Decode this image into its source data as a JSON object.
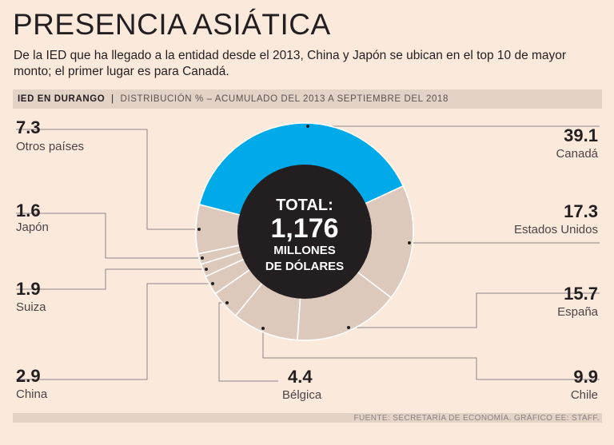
{
  "title": "PRESENCIA ASIÁTICA",
  "subtitle": "De la IED que ha llegado a la entidad desde el 2013, China y Japón se ubican en el top 10 de mayor monto; el primer lugar es para Canadá.",
  "header": {
    "bold": "IED EN DURANGO",
    "sep": "|",
    "rest": "DISTRIBUCIÓN % – ACUMULADO DEL 2013 A SEPTIEMBRE DEL 2018"
  },
  "center": {
    "line1": "TOTAL:",
    "line2": "1,176",
    "line3": "MILLONES",
    "line4": "DE DÓLARES"
  },
  "footer": "FUENTE: SECRETARÍA DE ECONOMÍA. GRÁFICO EE: STAFF.",
  "colors": {
    "highlight": "#00a9e7",
    "slice": "#ddc9bb",
    "center": "#231f20",
    "stroke": "#ffffff",
    "leader": "#8d8383"
  },
  "chart_data": {
    "type": "pie",
    "title": "IED EN DURANGO",
    "unit": "%",
    "total_label": "1,176 MILLONES DE DÓLARES",
    "slices": [
      {
        "key": "canada",
        "label": "Canadá",
        "value": 39.1,
        "highlight": true
      },
      {
        "key": "eu",
        "label": "Estados Unidos",
        "value": 17.3
      },
      {
        "key": "espana",
        "label": "España",
        "value": 15.7
      },
      {
        "key": "chile",
        "label": "Chile",
        "value": 9.9
      },
      {
        "key": "belgica",
        "label": "Bélgica",
        "value": 4.4
      },
      {
        "key": "china",
        "label": "China",
        "value": 2.9
      },
      {
        "key": "suiza",
        "label": "Suiza",
        "value": 1.9
      },
      {
        "key": "japon",
        "label": "Japón",
        "value": 1.6
      },
      {
        "key": "otros",
        "label": "Otros países",
        "value": 7.3
      }
    ]
  }
}
